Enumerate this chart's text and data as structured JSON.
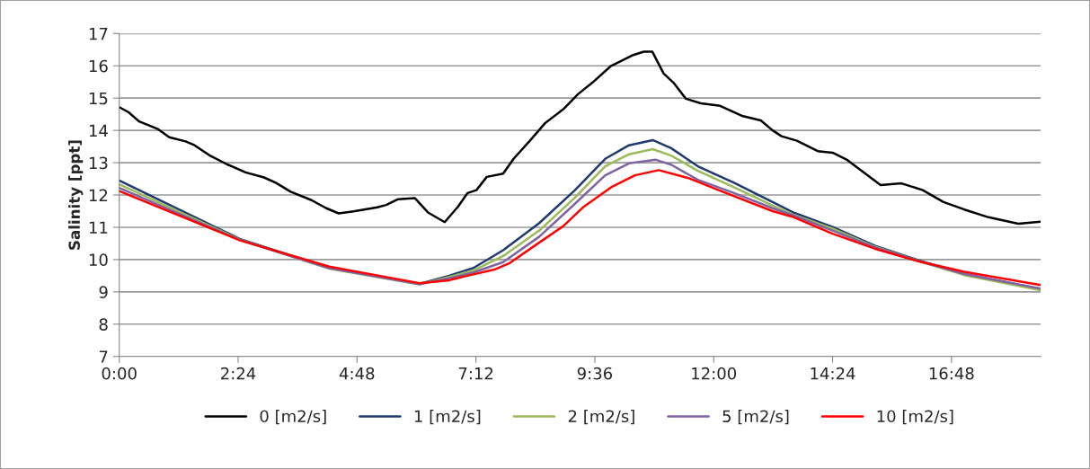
{
  "chart_data": {
    "type": "line",
    "ylabel": "Salinity [ppt]",
    "xlim": [
      0,
      18.6
    ],
    "ylim": [
      7,
      17
    ],
    "xticks": [
      {
        "value": 0,
        "label": "0:00"
      },
      {
        "value": 2.4,
        "label": "2:24"
      },
      {
        "value": 4.8,
        "label": "4:48"
      },
      {
        "value": 7.2,
        "label": "7:12"
      },
      {
        "value": 9.6,
        "label": "9:36"
      },
      {
        "value": 12,
        "label": "12:00"
      },
      {
        "value": 14.4,
        "label": "14:24"
      },
      {
        "value": 16.8,
        "label": "16:48"
      }
    ],
    "yticks": [
      7,
      8,
      9,
      10,
      11,
      12,
      13,
      14,
      15,
      16,
      17
    ],
    "grid": "y",
    "legend": "bottom",
    "marker": "none",
    "line_style": "solid",
    "series": [
      {
        "name": "0 [m2/s]",
        "color": "#000000",
        "x": [
          0,
          0.19,
          0.4,
          0.77,
          1.01,
          1.34,
          1.52,
          1.82,
          2.19,
          2.55,
          2.91,
          3.16,
          3.46,
          3.88,
          4.18,
          4.43,
          4.73,
          5.21,
          5.39,
          5.63,
          5.97,
          6.24,
          6.57,
          6.84,
          7.03,
          7.21,
          7.42,
          7.75,
          7.96,
          8.29,
          8.6,
          8.96,
          9.26,
          9.56,
          9.93,
          10.35,
          10.59,
          10.76,
          10.99,
          11.2,
          11.44,
          11.74,
          12.13,
          12.59,
          12.95,
          13.19,
          13.37,
          13.68,
          14.1,
          14.4,
          14.7,
          15.37,
          15.79,
          16.22,
          16.64,
          17.06,
          17.55,
          18.15,
          18.6
        ],
        "values": [
          14.72,
          14.56,
          14.28,
          14.05,
          13.79,
          13.66,
          13.54,
          13.23,
          12.94,
          12.7,
          12.55,
          12.38,
          12.1,
          11.84,
          11.59,
          11.43,
          11.49,
          11.62,
          11.69,
          11.87,
          11.9,
          11.45,
          11.16,
          11.64,
          12.06,
          12.15,
          12.56,
          12.66,
          13.12,
          13.68,
          14.23,
          14.65,
          15.12,
          15.49,
          16.0,
          16.32,
          16.44,
          16.44,
          15.76,
          15.46,
          14.98,
          14.84,
          14.76,
          14.44,
          14.31,
          14.0,
          13.82,
          13.68,
          13.36,
          13.31,
          13.08,
          12.31,
          12.36,
          12.15,
          11.78,
          11.55,
          11.31,
          11.11,
          11.17
        ]
      },
      {
        "name": "1 [m2/s]",
        "color": "#1f3a6e",
        "x": [
          0,
          2.43,
          4.24,
          6.06,
          6.66,
          7.15,
          7.75,
          8.48,
          9.2,
          9.81,
          10.29,
          10.77,
          11.14,
          11.68,
          12.41,
          13.19,
          13.62,
          14.4,
          15.25,
          16.15,
          17.06,
          18.6
        ],
        "values": [
          12.45,
          10.64,
          9.74,
          9.25,
          9.5,
          9.74,
          10.29,
          11.13,
          12.15,
          13.12,
          13.54,
          13.7,
          13.45,
          12.89,
          12.38,
          11.78,
          11.45,
          11.01,
          10.43,
          9.97,
          9.55,
          9.09
        ]
      },
      {
        "name": "2 [m2/s]",
        "color": "#9bbb59",
        "x": [
          0,
          2.43,
          4.24,
          6.06,
          6.66,
          7.15,
          7.75,
          8.48,
          9.2,
          9.81,
          10.29,
          10.77,
          11.14,
          11.68,
          12.41,
          13.19,
          13.62,
          14.4,
          15.25,
          16.15,
          17.06,
          18.6
        ],
        "values": [
          12.33,
          10.62,
          9.72,
          9.23,
          9.46,
          9.66,
          10.11,
          10.9,
          11.92,
          12.89,
          13.26,
          13.42,
          13.22,
          12.75,
          12.24,
          11.67,
          11.38,
          10.96,
          10.4,
          9.95,
          9.52,
          9.05
        ]
      },
      {
        "name": "5 [m2/s]",
        "color": "#8064a2",
        "x": [
          0,
          2.43,
          4.24,
          6.06,
          6.66,
          7.15,
          7.75,
          8.48,
          9.2,
          9.81,
          10.29,
          10.83,
          11.14,
          11.68,
          12.41,
          13.19,
          13.62,
          14.4,
          15.25,
          16.15,
          17.06,
          18.6
        ],
        "values": [
          12.22,
          10.61,
          9.73,
          9.24,
          9.42,
          9.6,
          9.92,
          10.71,
          11.73,
          12.61,
          12.98,
          13.09,
          12.94,
          12.47,
          12.06,
          11.59,
          11.36,
          10.9,
          10.38,
          9.95,
          9.55,
          9.1
        ]
      },
      {
        "name": "10 [m2/s]",
        "color": "#ff0000",
        "x": [
          0,
          2.43,
          4.24,
          6.06,
          6.66,
          7.03,
          7.57,
          7.87,
          8.48,
          8.96,
          9.38,
          9.93,
          10.41,
          10.89,
          11.5,
          12.1,
          13.19,
          13.62,
          14.4,
          15.25,
          16.15,
          17.06,
          18.6
        ],
        "values": [
          12.12,
          10.6,
          9.78,
          9.27,
          9.36,
          9.5,
          9.69,
          9.88,
          10.53,
          11.03,
          11.64,
          12.24,
          12.61,
          12.77,
          12.52,
          12.15,
          11.5,
          11.31,
          10.8,
          10.34,
          9.94,
          9.62,
          9.21
        ]
      }
    ]
  }
}
